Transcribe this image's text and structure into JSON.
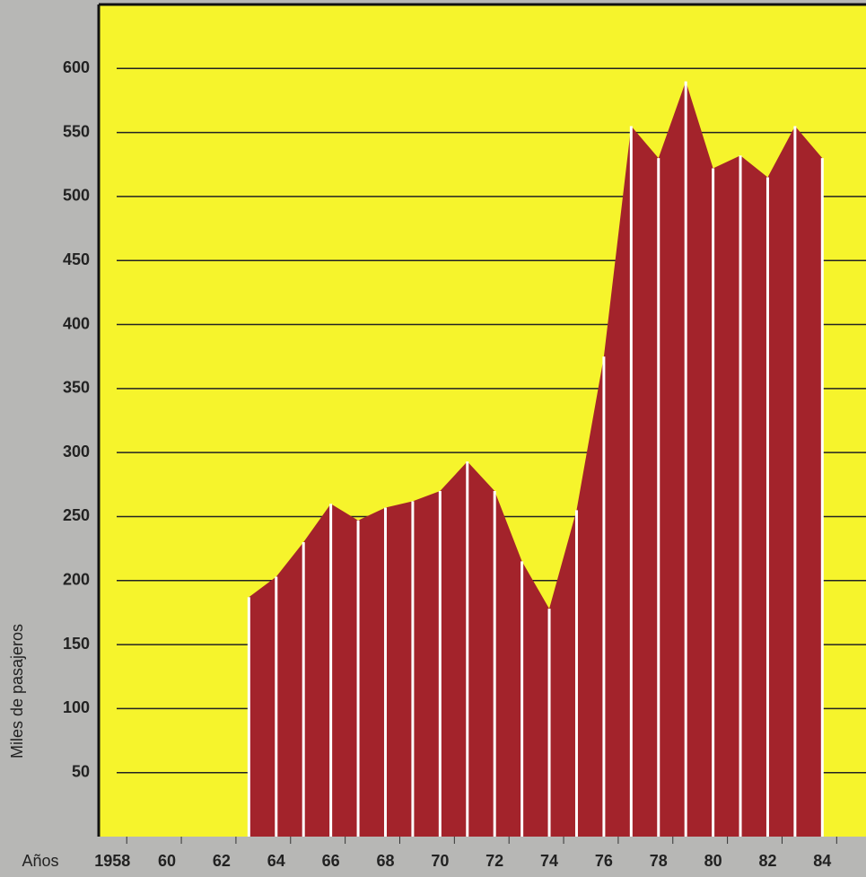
{
  "chart_data": {
    "type": "area",
    "y_label": "Miles de pasajeros",
    "x_label": "Años",
    "x": [
      1963,
      1964,
      1965,
      1966,
      1967,
      1968,
      1969,
      1970,
      1971,
      1972,
      1973,
      1974,
      1975,
      1976,
      1977,
      1978,
      1979,
      1980,
      1981,
      1982,
      1983,
      1984
    ],
    "values": [
      187,
      203,
      230,
      260,
      247,
      257,
      262,
      270,
      293,
      270,
      215,
      178,
      255,
      375,
      555,
      530,
      590,
      522,
      532,
      515,
      555,
      530
    ],
    "color": "#a3232b",
    "xlim": [
      1957.5,
      1985.6
    ],
    "xticks": [
      {
        "value": 1958,
        "label": "1958"
      },
      {
        "value": 1960,
        "label": "60"
      },
      {
        "value": 1962,
        "label": "62"
      },
      {
        "value": 1964,
        "label": "64"
      },
      {
        "value": 1966,
        "label": "66"
      },
      {
        "value": 1968,
        "label": "68"
      },
      {
        "value": 1970,
        "label": "70"
      },
      {
        "value": 1972,
        "label": "72"
      },
      {
        "value": 1974,
        "label": "74"
      },
      {
        "value": 1976,
        "label": "76"
      },
      {
        "value": 1978,
        "label": "78"
      },
      {
        "value": 1980,
        "label": "80"
      },
      {
        "value": 1982,
        "label": "82"
      },
      {
        "value": 1984,
        "label": "84"
      }
    ],
    "ylim": [
      0,
      650
    ],
    "yticks": [
      50,
      100,
      150,
      200,
      250,
      300,
      350,
      400,
      450,
      500,
      550,
      600
    ],
    "grid": true
  }
}
